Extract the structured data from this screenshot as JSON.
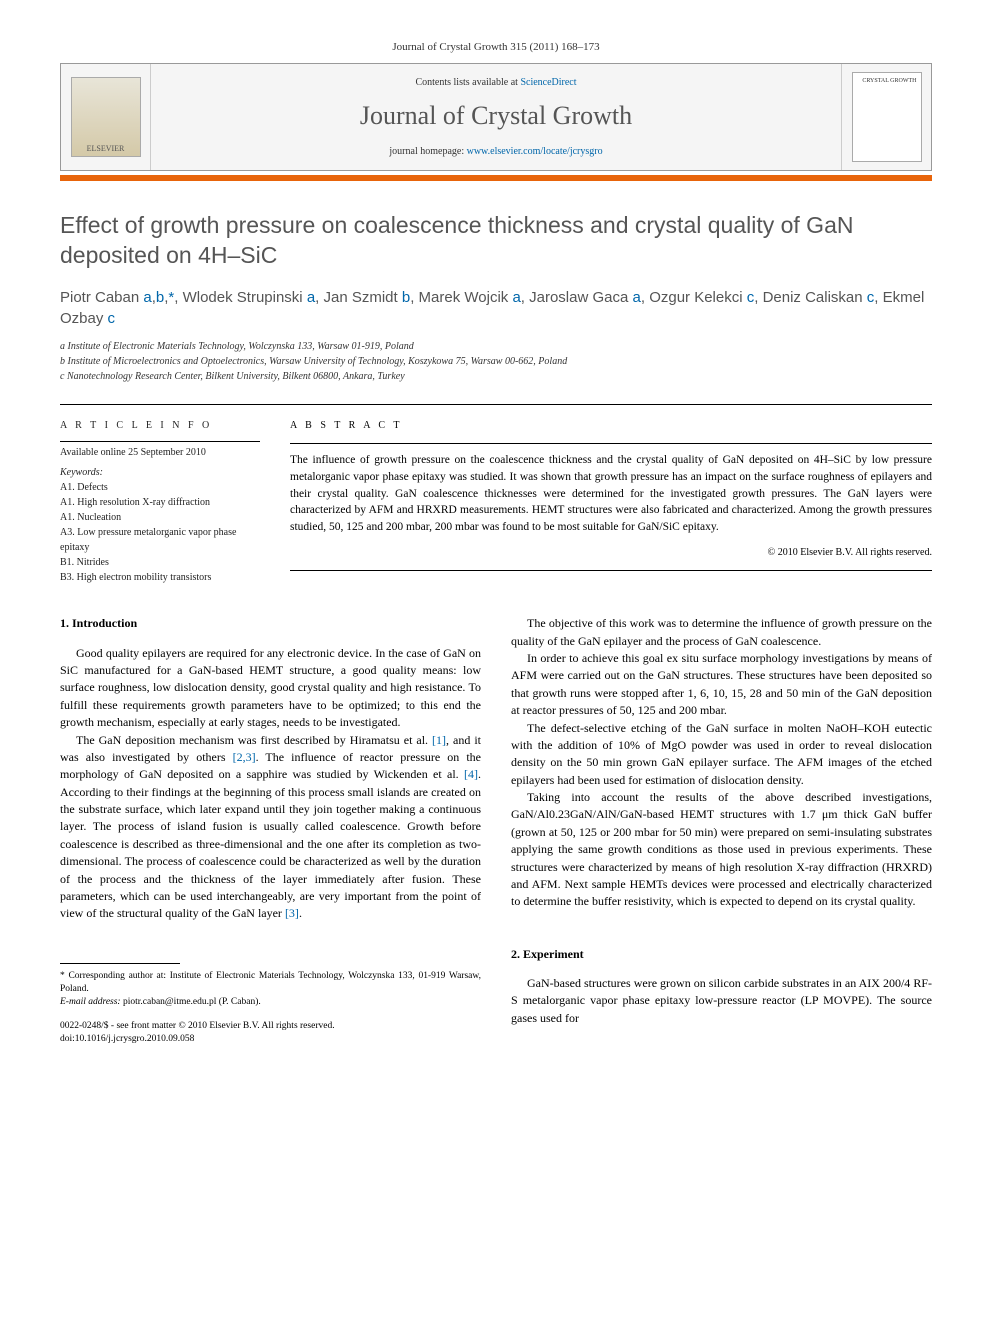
{
  "header": {
    "citation": "Journal of Crystal Growth 315 (2011) 168–173",
    "contents_prefix": "Contents lists available at ",
    "contents_link": "ScienceDirect",
    "journal_title": "Journal of Crystal Growth",
    "homepage_prefix": "journal homepage: ",
    "homepage_link": "www.elsevier.com/locate/jcrysgro",
    "publisher_logo_text": "ELSEVIER",
    "cover_text": "CRYSTAL GROWTH"
  },
  "article": {
    "title": "Effect of growth pressure on coalescence thickness and crystal quality of GaN deposited on 4H–SiC",
    "authors_html": "Piotr Caban <a href='#'>a</a>,<a href='#'>b</a>,<a href='#'>*</a>, Wlodek Strupinski <a href='#'>a</a>, Jan Szmidt <a href='#'>b</a>, Marek Wojcik <a href='#'>a</a>, Jaroslaw Gaca <a href='#'>a</a>, Ozgur Kelekci <a href='#'>c</a>, Deniz Caliskan <a href='#'>c</a>, Ekmel Ozbay <a href='#'>c</a>",
    "affiliations": [
      "a Institute of Electronic Materials Technology, Wolczynska 133, Warsaw 01-919, Poland",
      "b Institute of Microelectronics and Optoelectronics, Warsaw University of Technology, Koszykowa 75, Warsaw 00-662, Poland",
      "c Nanotechnology Research Center, Bilkent University, Bilkent 06800, Ankara, Turkey"
    ]
  },
  "info": {
    "heading": "A R T I C L E   I N F O",
    "available": "Available online 25 September 2010",
    "keywords_label": "Keywords:",
    "keywords": [
      "A1. Defects",
      "A1. High resolution X-ray diffraction",
      "A1. Nucleation",
      "A3. Low pressure metalorganic vapor phase epitaxy",
      "B1. Nitrides",
      "B3. High electron mobility transistors"
    ]
  },
  "abstract": {
    "heading": "A B S T R A C T",
    "text": "The influence of growth pressure on the coalescence thickness and the crystal quality of GaN deposited on 4H–SiC by low pressure metalorganic vapor phase epitaxy was studied. It was shown that growth pressure has an impact on the surface roughness of epilayers and their crystal quality. GaN coalescence thicknesses were determined for the investigated growth pressures. The GaN layers were characterized by AFM and HRXRD measurements. HEMT structures were also fabricated and characterized. Among the growth pressures studied, 50, 125 and 200 mbar, 200 mbar was found to be most suitable for GaN/SiC epitaxy.",
    "copyright": "© 2010 Elsevier B.V. All rights reserved."
  },
  "sections": {
    "s1_heading": "1. Introduction",
    "s1_p1": "Good quality epilayers are required for any electronic device. In the case of GaN on SiC manufactured for a GaN-based HEMT structure, a good quality means: low surface roughness, low dislocation density, good crystal quality and high resistance. To fulfill these requirements growth parameters have to be optimized; to this end the growth mechanism, especially at early stages, needs to be investigated.",
    "s1_p2_a": "The GaN deposition mechanism was first described by Hiramatsu et al. ",
    "s1_p2_ref1": "[1]",
    "s1_p2_b": ", and it was also investigated by others ",
    "s1_p2_ref2": "[2,3]",
    "s1_p2_c": ". The influence of reactor pressure on the morphology of GaN deposited on a sapphire was studied by Wickenden et al. ",
    "s1_p2_ref3": "[4]",
    "s1_p2_d": ". According to their findings at the beginning of this process small islands are created on the substrate surface, which later expand until they join together making a continuous layer. The process of island fusion is usually called coalescence. Growth before coalescence is described as three-dimensional and the one after its completion as two-dimensional. The process of coalescence could be characterized as well by the duration of the process and the thickness of the layer immediately after fusion. These parameters, which can be used interchangeably, are very important from the point of view of the structural quality of the GaN layer ",
    "s1_p2_ref4": "[3]",
    "s1_p2_e": ".",
    "s1_p3": "The objective of this work was to determine the influence of growth pressure on the quality of the GaN epilayer and the process of GaN coalescence.",
    "s1_p4": "In order to achieve this goal ex situ surface morphology investigations by means of AFM were carried out on the GaN structures. These structures have been deposited so that growth runs were stopped after 1, 6, 10, 15, 28 and 50 min of the GaN deposition at reactor pressures of 50, 125 and 200 mbar.",
    "s1_p5": "The defect-selective etching of the GaN surface in molten NaOH–KOH eutectic with the addition of 10% of MgO powder was used in order to reveal dislocation density on the 50 min grown GaN epilayer surface. The AFM images of the etched epilayers had been used for estimation of dislocation density.",
    "s1_p6": "Taking into account the results of the above described investigations, GaN/Al0.23GaN/AlN/GaN-based HEMT structures with 1.7 μm thick GaN buffer (grown at 50, 125 or 200 mbar for 50 min) were prepared on semi-insulating substrates applying the same growth conditions as those used in previous experiments. These structures were characterized by means of high resolution X-ray diffraction (HRXRD) and AFM. Next sample HEMTs devices were processed and electrically characterized to determine the buffer resistivity, which is expected to depend on its crystal quality.",
    "s2_heading": "2. Experiment",
    "s2_p1": "GaN-based structures were grown on silicon carbide substrates in an AIX 200/4 RF-S metalorganic vapor phase epitaxy low-pressure reactor (LP MOVPE). The source gases used for"
  },
  "footnote": {
    "corr": "* Corresponding author at: Institute of Electronic Materials Technology, Wolczynska 133, 01-919 Warsaw, Poland.",
    "email_label": "E-mail address:",
    "email": "piotr.caban@itme.edu.pl (P. Caban).",
    "issn": "0022-0248/$ - see front matter © 2010 Elsevier B.V. All rights reserved.",
    "doi": "doi:10.1016/j.jcrysgro.2010.09.058"
  },
  "colors": {
    "accent_orange": "#e8640a",
    "link_blue": "#0066aa",
    "heading_gray": "#555555"
  }
}
